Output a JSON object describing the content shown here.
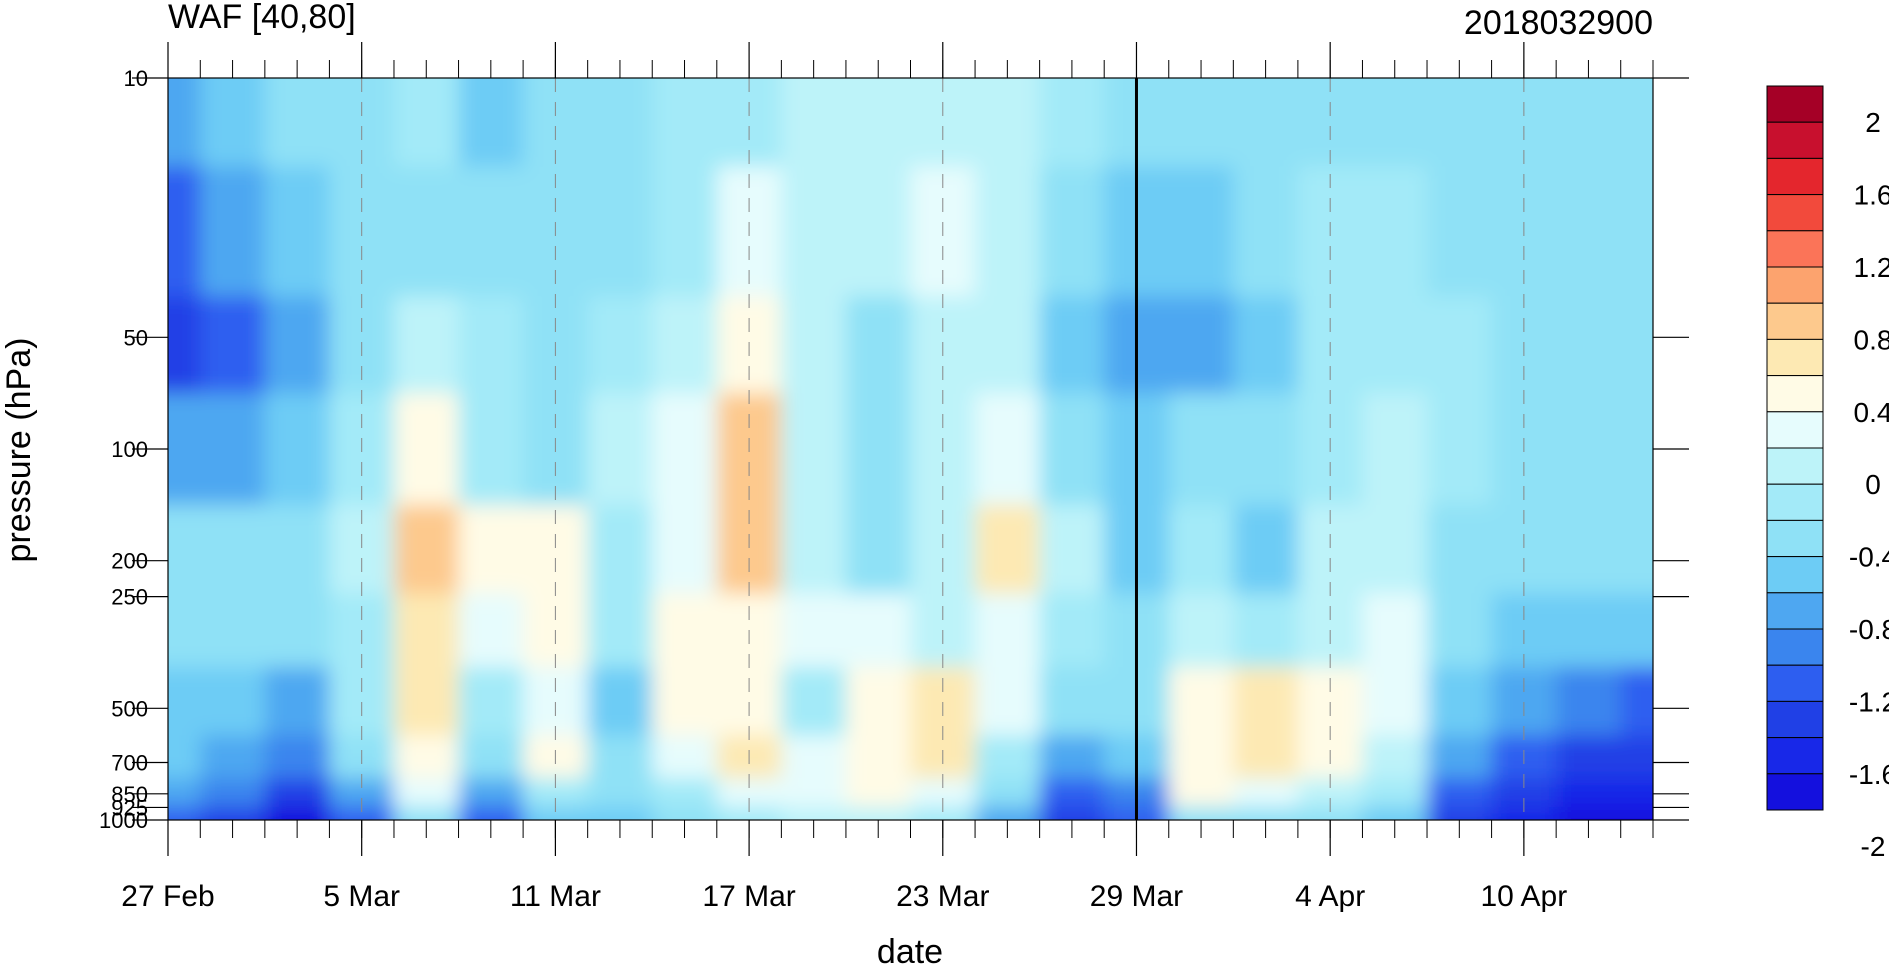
{
  "chart_data": {
    "type": "heatmap",
    "title_left": "WAF [40,80]",
    "title_right": "2018032900",
    "xlabel": "date",
    "ylabel": "pressure (hPa)",
    "x_tick_labels": [
      "27 Feb",
      "5 Mar",
      "11 Mar",
      "17 Mar",
      "23 Mar",
      "29 Mar",
      "4 Apr",
      "10 Apr"
    ],
    "x_range": [
      "27 Feb",
      "14 Apr"
    ],
    "y_scale": "log",
    "y_range": [
      1000,
      10
    ],
    "y_tick_labels": [
      "10",
      "50",
      "100",
      "200",
      "250",
      "500",
      "700",
      "850",
      "925",
      "1000"
    ],
    "y_tick_values": [
      10,
      50,
      100,
      200,
      250,
      500,
      700,
      850,
      925,
      1000
    ],
    "vertical_marker": "29 Mar",
    "contour_levels": [
      -2,
      -1.8,
      -1.6,
      -1.4,
      -1.2,
      -1,
      -0.8,
      -0.6,
      -0.4,
      -0.2,
      0,
      0.2,
      0.4,
      0.6,
      0.8,
      1,
      1.2,
      1.4,
      1.6,
      1.8,
      2
    ],
    "colorbar_labels": [
      "2",
      "1.6",
      "1.2",
      "0.8",
      "0.4",
      "0",
      "-0.4",
      "-0.8",
      "-1.2",
      "-1.6",
      "-2"
    ],
    "colorbar_colors": [
      "#a50026",
      "#c8102e",
      "#e4262d",
      "#f24a3c",
      "#fb7458",
      "#fca36e",
      "#fdc98d",
      "#fde9b3",
      "#fffbe6",
      "#e6fcfd",
      "#bdf3f9",
      "#a3eaf8",
      "#8fe1f6",
      "#6dccf5",
      "#4ea7f1",
      "#3a85ee",
      "#2d5ef0",
      "#2040e6",
      "#1828e8",
      "#1410de"
    ],
    "field_samples": {
      "dates": [
        "27 Feb",
        "1 Mar",
        "3 Mar",
        "5 Mar",
        "7 Mar",
        "9 Mar",
        "11 Mar",
        "13 Mar",
        "15 Mar",
        "17 Mar",
        "19 Mar",
        "21 Mar",
        "23 Mar",
        "25 Mar",
        "27 Mar",
        "29 Mar",
        "31 Mar",
        "2 Apr",
        "4 Apr",
        "6 Apr",
        "8 Apr",
        "10 Apr",
        "12 Apr",
        "14 Apr"
      ],
      "levels_hPa": [
        10,
        30,
        50,
        100,
        200,
        300,
        500,
        700,
        850,
        1000
      ],
      "values": [
        [
          -0.9,
          -0.7,
          -0.6,
          -0.5,
          -0.4,
          -0.8,
          -0.5,
          -0.5,
          -0.4,
          -0.3,
          -0.2,
          -0.2,
          -0.1,
          -0.1,
          -0.3,
          -0.6,
          -0.5,
          -0.5,
          -0.5,
          -0.5,
          -0.6,
          -0.6,
          -0.6,
          -0.6
        ],
        [
          -1.3,
          -1.0,
          -0.7,
          -0.6,
          -0.5,
          -0.5,
          -0.6,
          -0.5,
          -0.3,
          0.0,
          -0.1,
          -0.2,
          0.0,
          -0.1,
          -0.5,
          -0.8,
          -0.7,
          -0.5,
          -0.4,
          -0.4,
          -0.5,
          -0.6,
          -0.6,
          -0.6
        ],
        [
          -1.6,
          -1.3,
          -0.9,
          -0.5,
          -0.2,
          -0.4,
          -0.6,
          -0.4,
          -0.1,
          0.2,
          -0.2,
          -0.5,
          -0.1,
          -0.2,
          -0.7,
          -0.9,
          -1.0,
          -0.7,
          -0.4,
          -0.3,
          -0.4,
          -0.5,
          -0.6,
          -0.6
        ],
        [
          -1.0,
          -0.9,
          -0.7,
          -0.4,
          0.2,
          -0.3,
          -0.5,
          -0.2,
          0.1,
          0.6,
          -0.2,
          -0.6,
          -0.2,
          0.1,
          -0.5,
          -0.8,
          -0.6,
          -0.6,
          -0.3,
          -0.2,
          -0.4,
          -0.5,
          -0.6,
          -0.6
        ],
        [
          -0.6,
          -0.5,
          -0.6,
          -0.2,
          0.6,
          0.2,
          0.2,
          -0.3,
          0.1,
          0.6,
          -0.1,
          -0.5,
          -0.1,
          0.4,
          -0.2,
          -0.7,
          -0.4,
          -0.8,
          -0.2,
          -0.2,
          -0.5,
          -0.6,
          -0.6,
          -0.6
        ],
        [
          -0.6,
          -0.6,
          -0.6,
          -0.3,
          0.5,
          0.1,
          0.2,
          -0.4,
          0.2,
          0.3,
          0.1,
          0.0,
          -0.2,
          0.1,
          -0.4,
          -0.5,
          -0.2,
          -0.3,
          -0.1,
          0.1,
          -0.5,
          -0.7,
          -0.8,
          -0.8
        ],
        [
          -0.7,
          -0.8,
          -0.9,
          -0.4,
          0.4,
          -0.4,
          0.1,
          -0.8,
          0.3,
          0.2,
          -0.3,
          0.3,
          0.5,
          0.0,
          -0.6,
          -0.6,
          0.3,
          0.4,
          0.3,
          0.0,
          -0.8,
          -1.0,
          -1.2,
          -1.3
        ],
        [
          -0.8,
          -1.0,
          -1.2,
          -0.6,
          0.3,
          -0.6,
          0.2,
          -0.6,
          0.1,
          0.4,
          0.0,
          0.3,
          0.4,
          -0.3,
          -0.9,
          -0.8,
          0.2,
          0.4,
          0.3,
          -0.2,
          -1.0,
          -1.4,
          -1.5,
          -1.6
        ],
        [
          -1.0,
          -1.2,
          -1.5,
          -1.0,
          0.0,
          -0.9,
          -0.4,
          -0.6,
          -0.4,
          0.1,
          0.1,
          0.2,
          0.1,
          -0.6,
          -1.3,
          -1.2,
          0.3,
          0.1,
          -0.1,
          -0.4,
          -1.3,
          -1.6,
          -1.7,
          -1.8
        ],
        [
          -1.4,
          -1.6,
          -2.0,
          -1.3,
          -0.6,
          -1.4,
          -0.8,
          -0.8,
          -0.6,
          -0.3,
          -0.1,
          -0.2,
          -0.4,
          -1.0,
          -1.6,
          -1.4,
          -0.6,
          -0.5,
          -0.6,
          -0.8,
          -1.5,
          -1.8,
          -1.9,
          -2.0
        ]
      ]
    }
  }
}
